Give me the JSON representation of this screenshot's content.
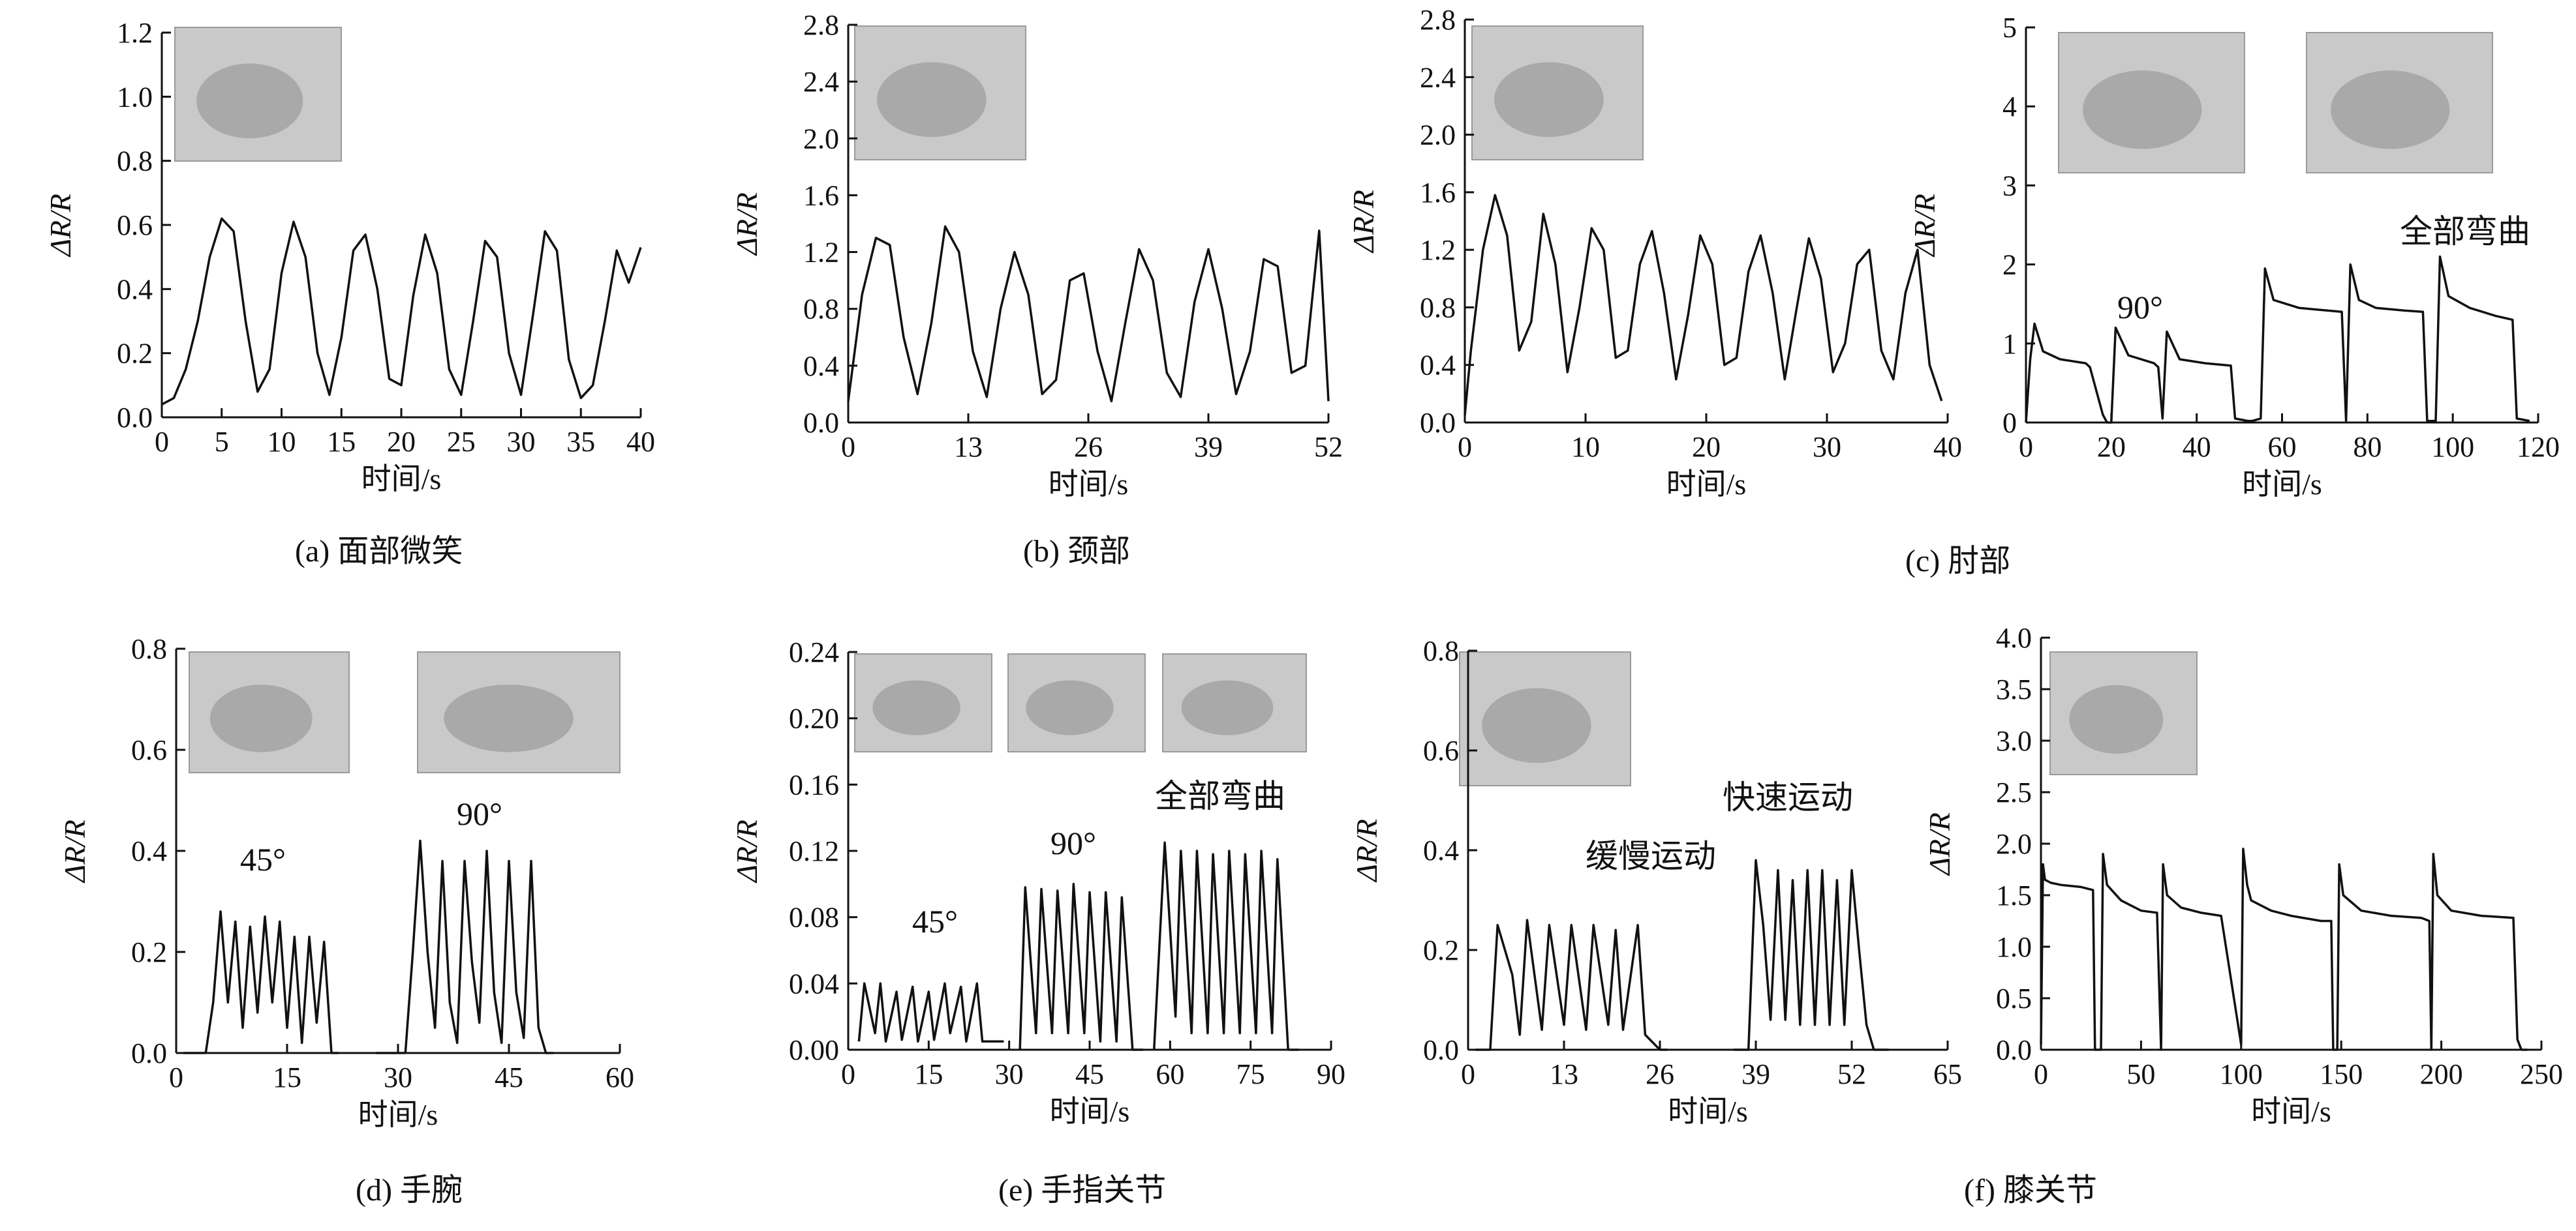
{
  "chart_data": [
    {
      "type": "line",
      "caption": "(a) 面部微笑",
      "xlabel": "时间/s",
      "ylabel": "ΔR/R",
      "xlim": [
        0,
        40
      ],
      "ylim": [
        0.0,
        1.2
      ],
      "xticks": [
        0,
        5,
        10,
        15,
        20,
        25,
        30,
        35,
        40
      ],
      "yticks": [
        "0.0",
        "0.2",
        "0.4",
        "0.6",
        "0.8",
        "1.0",
        "1.2"
      ],
      "annotations": [],
      "has_photo": true,
      "series": [
        {
          "x": [
            0,
            1,
            2,
            3,
            4,
            5,
            6,
            7,
            8,
            9,
            10,
            11,
            12,
            13,
            14,
            15,
            16,
            17,
            18,
            19,
            20,
            21,
            22,
            23,
            24,
            25,
            26,
            27,
            28,
            29,
            30,
            31,
            32,
            33,
            34,
            35,
            36,
            37,
            38,
            39,
            40
          ],
          "y": [
            0.04,
            0.06,
            0.15,
            0.3,
            0.5,
            0.62,
            0.58,
            0.3,
            0.08,
            0.15,
            0.45,
            0.61,
            0.5,
            0.2,
            0.07,
            0.25,
            0.52,
            0.57,
            0.4,
            0.12,
            0.1,
            0.38,
            0.57,
            0.45,
            0.15,
            0.07,
            0.3,
            0.55,
            0.5,
            0.2,
            0.07,
            0.32,
            0.58,
            0.52,
            0.18,
            0.06,
            0.1,
            0.3,
            0.52,
            0.42,
            0.53
          ]
        }
      ]
    },
    {
      "type": "line",
      "caption": "(b) 颈部",
      "xlabel": "时间/s",
      "ylabel": "ΔR/R",
      "xlim": [
        0,
        52
      ],
      "ylim": [
        0.0,
        2.8
      ],
      "xticks": [
        0,
        13,
        26,
        39,
        52
      ],
      "yticks": [
        "0.0",
        "0.4",
        "0.8",
        "1.2",
        "1.6",
        "2.0",
        "2.4",
        "2.8"
      ],
      "annotations": [],
      "has_photo": true,
      "series": [
        {
          "x": [
            0,
            1.5,
            3,
            4.5,
            6,
            7.5,
            9,
            10.5,
            12,
            13.5,
            15,
            16.5,
            18,
            19.5,
            21,
            22.5,
            24,
            25.5,
            27,
            28.5,
            30,
            31.5,
            33,
            34.5,
            36,
            37.5,
            39,
            40.5,
            42,
            43.5,
            45,
            46.5,
            48,
            49.5,
            51,
            52
          ],
          "y": [
            0.15,
            0.9,
            1.3,
            1.25,
            0.6,
            0.2,
            0.7,
            1.38,
            1.2,
            0.5,
            0.18,
            0.8,
            1.2,
            0.9,
            0.2,
            0.3,
            1.0,
            1.05,
            0.5,
            0.15,
            0.7,
            1.22,
            1.0,
            0.35,
            0.18,
            0.85,
            1.22,
            0.8,
            0.2,
            0.5,
            1.15,
            1.1,
            0.35,
            0.4,
            1.35,
            0.15
          ]
        }
      ]
    },
    {
      "type": "line",
      "caption": "",
      "xlabel": "时间/s",
      "ylabel": "ΔR/R",
      "xlim": [
        0,
        40
      ],
      "ylim": [
        0.0,
        2.8
      ],
      "xticks": [
        0,
        10,
        20,
        30,
        40
      ],
      "yticks": [
        "0.0",
        "0.4",
        "0.8",
        "1.2",
        "1.6",
        "2.0",
        "2.4",
        "2.8"
      ],
      "annotations": [],
      "has_photo": true,
      "series": [
        {
          "x": [
            0,
            0.5,
            1.5,
            2.5,
            3.5,
            4.5,
            5.5,
            6.5,
            7.5,
            8.5,
            9.5,
            10.5,
            11.5,
            12.5,
            13.5,
            14.5,
            15.5,
            16.5,
            17.5,
            18.5,
            19.5,
            20.5,
            21.5,
            22.5,
            23.5,
            24.5,
            25.5,
            26.5,
            27.5,
            28.5,
            29.5,
            30.5,
            31.5,
            32.5,
            33.5,
            34.5,
            35.5,
            36.5,
            37.5,
            38.5,
            39.5
          ],
          "y": [
            0.05,
            0.5,
            1.2,
            1.58,
            1.3,
            0.5,
            0.7,
            1.45,
            1.1,
            0.35,
            0.8,
            1.35,
            1.2,
            0.45,
            0.5,
            1.1,
            1.33,
            0.9,
            0.3,
            0.75,
            1.3,
            1.1,
            0.4,
            0.45,
            1.05,
            1.3,
            0.9,
            0.3,
            0.8,
            1.28,
            1.0,
            0.35,
            0.55,
            1.1,
            1.2,
            0.5,
            0.3,
            0.9,
            1.2,
            0.4,
            0.15
          ]
        }
      ]
    },
    {
      "type": "line",
      "caption": "(c) 肘部",
      "xlabel": "时间/s",
      "ylabel": "ΔR/R",
      "xlim": [
        0,
        120
      ],
      "ylim": [
        0,
        5
      ],
      "xticks": [
        0,
        20,
        40,
        60,
        80,
        100,
        120
      ],
      "yticks": [
        "0",
        "1",
        "2",
        "3",
        "4",
        "5"
      ],
      "annotations": [
        "90°",
        "全部弯曲"
      ],
      "has_photo": true,
      "series": [
        {
          "x": [
            0,
            1,
            2,
            4,
            8,
            14,
            15,
            18,
            19,
            20,
            21,
            24,
            30,
            31,
            32,
            33,
            36,
            42,
            48,
            49,
            52,
            53,
            55,
            56,
            58,
            64,
            70,
            74,
            75,
            76,
            78,
            82,
            88,
            93,
            94,
            96,
            97,
            99,
            104,
            110,
            114,
            115,
            118
          ],
          "y": [
            0.0,
            0.8,
            1.25,
            0.9,
            0.8,
            0.75,
            0.7,
            0.1,
            0.0,
            0.0,
            1.2,
            0.85,
            0.75,
            0.7,
            0.05,
            1.15,
            0.8,
            0.75,
            0.72,
            0.05,
            0.02,
            0.02,
            0.05,
            1.95,
            1.55,
            1.45,
            1.42,
            1.4,
            0.02,
            2.0,
            1.55,
            1.45,
            1.42,
            1.4,
            0.02,
            0.02,
            2.1,
            1.6,
            1.45,
            1.35,
            1.3,
            0.05,
            0.02
          ]
        }
      ]
    },
    {
      "type": "line",
      "caption": "(d) 手腕",
      "xlabel": "时间/s",
      "ylabel": "ΔR/R",
      "xlim": [
        0,
        60
      ],
      "ylim": [
        0.0,
        0.8
      ],
      "xticks": [
        0,
        15,
        30,
        45,
        60
      ],
      "yticks": [
        "0.0",
        "0.2",
        "0.4",
        "0.6",
        "0.8"
      ],
      "annotations": [
        "45°",
        "90°"
      ],
      "has_photo": true,
      "series": [
        {
          "x": [
            1,
            4,
            5,
            6,
            7,
            8,
            9,
            10,
            11,
            12,
            13,
            14,
            15,
            16,
            17,
            18,
            19,
            20,
            21,
            22
          ],
          "y": [
            0.0,
            0.0,
            0.1,
            0.28,
            0.1,
            0.26,
            0.05,
            0.25,
            0.08,
            0.27,
            0.1,
            0.26,
            0.05,
            0.23,
            0.02,
            0.23,
            0.06,
            0.22,
            0.0,
            0.0
          ]
        },
        {
          "x": [
            27,
            31,
            32,
            33,
            34,
            35,
            36,
            37,
            38,
            39,
            40,
            41,
            42,
            43,
            44,
            45,
            46,
            47,
            48,
            49,
            50,
            51
          ],
          "y": [
            0.0,
            0.0,
            0.2,
            0.42,
            0.2,
            0.05,
            0.38,
            0.1,
            0.02,
            0.38,
            0.18,
            0.06,
            0.4,
            0.12,
            0.02,
            0.38,
            0.12,
            0.03,
            0.38,
            0.05,
            0.0,
            0.0
          ]
        }
      ]
    },
    {
      "type": "line",
      "caption": "(e) 手指关节",
      "xlabel": "时间/s",
      "ylabel": "ΔR/R",
      "xlim": [
        0,
        90
      ],
      "ylim": [
        0.0,
        0.24
      ],
      "xticks": [
        0,
        15,
        30,
        45,
        60,
        75,
        90
      ],
      "yticks": [
        "0.00",
        "0.04",
        "0.08",
        "0.12",
        "0.16",
        "0.20",
        "0.24"
      ],
      "annotations": [
        "45°",
        "90°",
        "全部弯曲"
      ],
      "has_photo": true,
      "series": [
        {
          "x": [
            2,
            3,
            5,
            6,
            7,
            9,
            10,
            12,
            13,
            15,
            16,
            18,
            19,
            21,
            22,
            24,
            25,
            27,
            29
          ],
          "y": [
            0.005,
            0.04,
            0.01,
            0.04,
            0.005,
            0.035,
            0.006,
            0.038,
            0.005,
            0.035,
            0.006,
            0.04,
            0.01,
            0.038,
            0.005,
            0.04,
            0.005,
            0.005,
            0.005
          ]
        },
        {
          "x": [
            32,
            33,
            35,
            36,
            38,
            39,
            41,
            42,
            44,
            45,
            47,
            48,
            50,
            51,
            53,
            55
          ],
          "y": [
            0.0,
            0.098,
            0.01,
            0.097,
            0.01,
            0.096,
            0.01,
            0.1,
            0.01,
            0.095,
            0.005,
            0.095,
            0.005,
            0.092,
            0.0,
            0.0
          ]
        },
        {
          "x": [
            57,
            59,
            61,
            62,
            64,
            65,
            67,
            68,
            70,
            71,
            73,
            74,
            76,
            77,
            79,
            80,
            82,
            84
          ],
          "y": [
            0.0,
            0.125,
            0.02,
            0.12,
            0.01,
            0.12,
            0.01,
            0.118,
            0.01,
            0.12,
            0.01,
            0.118,
            0.01,
            0.12,
            0.01,
            0.115,
            0.0,
            0.0
          ]
        }
      ]
    },
    {
      "type": "line",
      "caption": "",
      "xlabel": "时间/s",
      "ylabel": "ΔR/R",
      "xlim": [
        0,
        65
      ],
      "ylim": [
        0.0,
        0.8
      ],
      "xticks": [
        0,
        13,
        26,
        39,
        52,
        65
      ],
      "yticks": [
        "0.0",
        "0.2",
        "0.4",
        "0.6",
        "0.8"
      ],
      "annotations": [
        "缓慢运动",
        "快速运动"
      ],
      "has_photo": true,
      "series": [
        {
          "x": [
            1,
            3,
            4,
            6,
            7,
            8,
            10,
            11,
            13,
            14,
            16,
            17,
            19,
            20,
            21,
            23,
            24,
            26,
            27
          ],
          "y": [
            0.0,
            0.0,
            0.25,
            0.15,
            0.03,
            0.26,
            0.04,
            0.25,
            0.05,
            0.25,
            0.04,
            0.25,
            0.05,
            0.24,
            0.04,
            0.25,
            0.03,
            0.0,
            0.0
          ]
        },
        {
          "x": [
            36,
            38,
            39,
            40,
            41,
            42,
            43,
            44,
            45,
            46,
            47,
            48,
            49,
            50,
            51,
            52,
            53,
            54,
            55,
            57
          ],
          "y": [
            0.0,
            0.0,
            0.38,
            0.25,
            0.06,
            0.36,
            0.06,
            0.34,
            0.05,
            0.36,
            0.05,
            0.36,
            0.05,
            0.34,
            0.05,
            0.36,
            0.2,
            0.05,
            0.0,
            0.0
          ]
        }
      ]
    },
    {
      "type": "line",
      "caption": "(f) 膝关节",
      "xlabel": "时间/s",
      "ylabel": "ΔR/R",
      "xlim": [
        0,
        250
      ],
      "ylim": [
        0.0,
        4.0
      ],
      "xticks": [
        0,
        50,
        100,
        150,
        200,
        250
      ],
      "yticks": [
        "0.0",
        "0.5",
        "1.0",
        "1.5",
        "2.0",
        "2.5",
        "3.0",
        "3.5",
        "4.0"
      ],
      "annotations": [],
      "has_photo": true,
      "series": [
        {
          "x": [
            0,
            1,
            2,
            5,
            10,
            20,
            26,
            27,
            28,
            30,
            31,
            33,
            40,
            50,
            58,
            60,
            61,
            63,
            70,
            80,
            90,
            100,
            101,
            103,
            105,
            115,
            125,
            140,
            145,
            146,
            148,
            149,
            151,
            160,
            175,
            190,
            194,
            195,
            196,
            198,
            205,
            220,
            236,
            238,
            240,
            243
          ],
          "y": [
            0.05,
            1.8,
            1.65,
            1.62,
            1.6,
            1.58,
            1.55,
            0.0,
            0.0,
            0.0,
            1.9,
            1.6,
            1.45,
            1.35,
            1.33,
            0.0,
            1.8,
            1.5,
            1.38,
            1.33,
            1.3,
            0.05,
            1.95,
            1.6,
            1.45,
            1.35,
            1.3,
            1.25,
            1.25,
            0.0,
            0.0,
            1.8,
            1.5,
            1.35,
            1.3,
            1.28,
            1.25,
            0.0,
            1.9,
            1.5,
            1.35,
            1.3,
            1.28,
            0.1,
            0.0,
            0.0
          ]
        }
      ]
    }
  ]
}
